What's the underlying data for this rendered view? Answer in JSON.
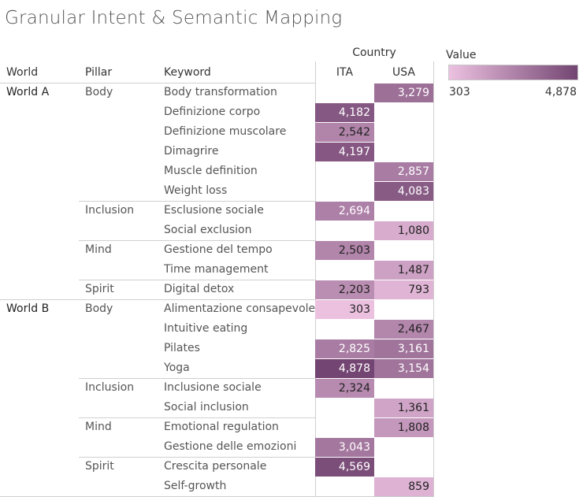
{
  "title": "Granular Intent & Semantic Mapping",
  "headers": {
    "world": "World",
    "pillar": "Pillar",
    "keyword": "Keyword",
    "country": "Country"
  },
  "legend": {
    "title": "Value",
    "min_label": "303",
    "max_label": "4,878",
    "color_low": "#ecc1e0",
    "color_high": "#734572"
  },
  "chart_data": {
    "type": "heatmap",
    "title": "Granular Intent & Semantic Mapping",
    "columns": [
      "ITA",
      "USA"
    ],
    "value_range": [
      303,
      4878
    ],
    "rows": [
      {
        "world": "World A",
        "pillar": "Body",
        "keyword": "Body transformation",
        "ITA": null,
        "USA": 3279
      },
      {
        "world": "World A",
        "pillar": "Body",
        "keyword": "Definizione corpo",
        "ITA": 4182,
        "USA": null
      },
      {
        "world": "World A",
        "pillar": "Body",
        "keyword": "Definizione muscolare",
        "ITA": 2542,
        "USA": null
      },
      {
        "world": "World A",
        "pillar": "Body",
        "keyword": "Dimagrire",
        "ITA": 4197,
        "USA": null
      },
      {
        "world": "World A",
        "pillar": "Body",
        "keyword": "Muscle definition",
        "ITA": null,
        "USA": 2857
      },
      {
        "world": "World A",
        "pillar": "Body",
        "keyword": "Weight loss",
        "ITA": null,
        "USA": 4083
      },
      {
        "world": "World A",
        "pillar": "Inclusion",
        "keyword": "Esclusione sociale",
        "ITA": 2694,
        "USA": null
      },
      {
        "world": "World A",
        "pillar": "Inclusion",
        "keyword": "Social exclusion",
        "ITA": null,
        "USA": 1080
      },
      {
        "world": "World A",
        "pillar": "Mind",
        "keyword": "Gestione del tempo",
        "ITA": 2503,
        "USA": null
      },
      {
        "world": "World A",
        "pillar": "Mind",
        "keyword": "Time management",
        "ITA": null,
        "USA": 1487
      },
      {
        "world": "World A",
        "pillar": "Spirit",
        "keyword": "Digital detox",
        "ITA": 2203,
        "USA": 793
      },
      {
        "world": "World B",
        "pillar": "Body",
        "keyword": "Alimentazione consapevole",
        "ITA": 303,
        "USA": null
      },
      {
        "world": "World B",
        "pillar": "Body",
        "keyword": "Intuitive eating",
        "ITA": null,
        "USA": 2467
      },
      {
        "world": "World B",
        "pillar": "Body",
        "keyword": "Pilates",
        "ITA": 2825,
        "USA": 3161
      },
      {
        "world": "World B",
        "pillar": "Body",
        "keyword": "Yoga",
        "ITA": 4878,
        "USA": 3154
      },
      {
        "world": "World B",
        "pillar": "Inclusion",
        "keyword": "Inclusione sociale",
        "ITA": 2324,
        "USA": null
      },
      {
        "world": "World B",
        "pillar": "Inclusion",
        "keyword": "Social inclusion",
        "ITA": null,
        "USA": 1361
      },
      {
        "world": "World B",
        "pillar": "Mind",
        "keyword": "Emotional regulation",
        "ITA": null,
        "USA": 1808
      },
      {
        "world": "World B",
        "pillar": "Mind",
        "keyword": "Gestione delle emozioni",
        "ITA": 3043,
        "USA": null
      },
      {
        "world": "World B",
        "pillar": "Spirit",
        "keyword": "Crescita personale",
        "ITA": 4569,
        "USA": null
      },
      {
        "world": "World B",
        "pillar": "Spirit",
        "keyword": "Self-growth",
        "ITA": null,
        "USA": 859
      }
    ]
  }
}
